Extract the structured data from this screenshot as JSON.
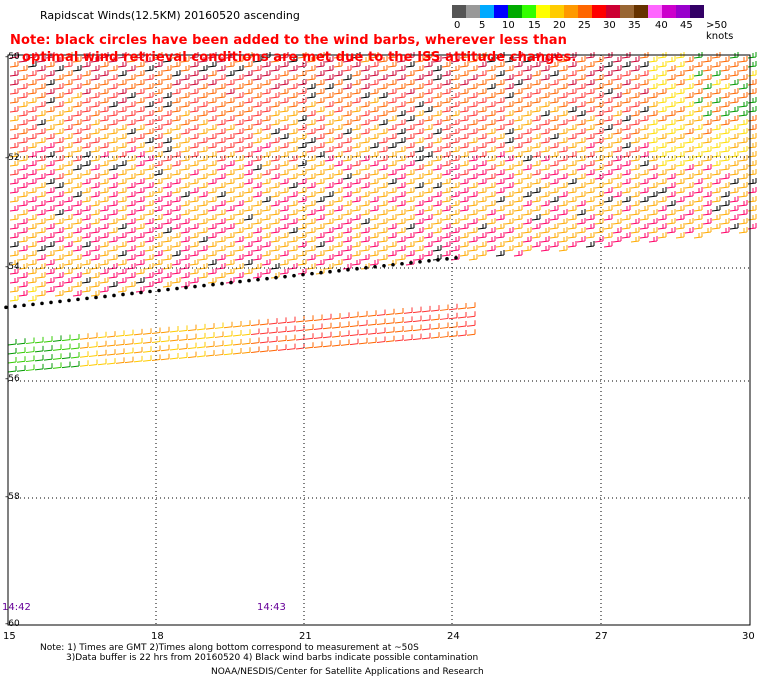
{
  "title": "Rapidscat Winds(12.5KM) 20160520 ascending",
  "note_line1": "Note: black circles have been added to the wind barbs, wherever less than",
  "note_line2": "optimal wind retrieval conditions are met due to the ISS attitude changes.",
  "legend": {
    "ticks": [
      "0",
      "5",
      "10",
      "15",
      "20",
      "25",
      "30",
      "35",
      "40",
      "45",
      ">50 knots"
    ],
    "colors": [
      "#555555",
      "#999999",
      "#00aaff",
      "#0000ff",
      "#00aa00",
      "#33ff00",
      "#ffff00",
      "#ffcc00",
      "#ff9900",
      "#ff6600",
      "#ff0000",
      "#cc0033",
      "#996633",
      "#663300",
      "#ff66ff",
      "#cc00cc",
      "#9900cc",
      "#330066"
    ]
  },
  "map": {
    "lon_labels": [
      "15",
      "18",
      "21",
      "24",
      "27",
      "30"
    ],
    "lat_labels": [
      "-50",
      "-52",
      "-54",
      "-56",
      "-58",
      "-60"
    ],
    "lon_range": [
      15,
      30
    ],
    "lat_range": [
      -60,
      -50
    ]
  },
  "times": [
    "14:42",
    "14:43"
  ],
  "footnote1": "Note: 1) Times are GMT 2)Times along bottom correspond to measurement at ~50S",
  "footnote2": "3)Data buffer is 22 hrs from 20160520 4) Black wind barbs indicate possible contamination",
  "credit": "NOAA/NESDIS/Center for Satellite Applications and Research"
}
